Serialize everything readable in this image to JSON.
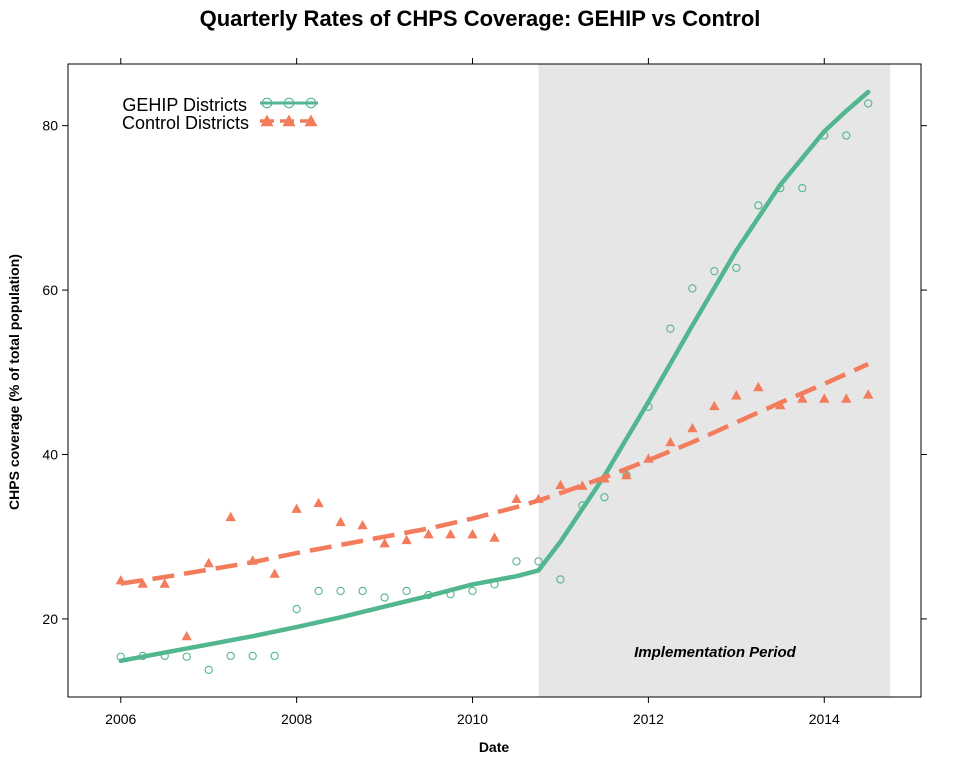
{
  "chart_data": {
    "type": "line",
    "title": "Quarterly Rates of CHPS Coverage: GEHIP vs Control",
    "xlabel": "Date",
    "ylabel": "CHPS coverage (% of total population)",
    "xlim": [
      2005.4,
      2015.1
    ],
    "ylim": [
      10.5,
      87.5
    ],
    "x_ticks": [
      2006,
      2008,
      2010,
      2012,
      2014
    ],
    "y_ticks": [
      20,
      40,
      60,
      80
    ],
    "shaded_region": {
      "x_start": 2010.75,
      "x_end": 2014.75,
      "label": "Implementation Period",
      "color": "#e6e6e6"
    },
    "legend_position": "top-left",
    "grid": false,
    "series": [
      {
        "name": "GEHIP Districts",
        "color": "#52b68f",
        "marker": "open-circle",
        "line_style": "solid",
        "points": [
          [
            2006.0,
            15.4
          ],
          [
            2006.25,
            15.5
          ],
          [
            2006.5,
            15.5
          ],
          [
            2006.75,
            15.4
          ],
          [
            2007.0,
            13.8
          ],
          [
            2007.25,
            15.5
          ],
          [
            2007.5,
            15.5
          ],
          [
            2007.75,
            15.5
          ],
          [
            2008.0,
            21.2
          ],
          [
            2008.25,
            23.4
          ],
          [
            2008.5,
            23.4
          ],
          [
            2008.75,
            23.4
          ],
          [
            2009.0,
            22.6
          ],
          [
            2009.25,
            23.4
          ],
          [
            2009.5,
            22.9
          ],
          [
            2009.75,
            23.0
          ],
          [
            2010.0,
            23.4
          ],
          [
            2010.25,
            24.2
          ],
          [
            2010.5,
            27.0
          ],
          [
            2010.75,
            27.0
          ],
          [
            2011.0,
            24.8
          ],
          [
            2011.25,
            33.8
          ],
          [
            2011.5,
            34.8
          ],
          [
            2011.75,
            37.5
          ],
          [
            2012.0,
            45.8
          ],
          [
            2012.25,
            55.3
          ],
          [
            2012.5,
            60.2
          ],
          [
            2012.75,
            62.3
          ],
          [
            2013.0,
            62.7
          ],
          [
            2013.25,
            70.3
          ],
          [
            2013.5,
            72.4
          ],
          [
            2013.75,
            72.4
          ],
          [
            2014.0,
            78.8
          ],
          [
            2014.25,
            78.8
          ],
          [
            2014.5,
            82.7
          ]
        ],
        "fit": [
          [
            2006.0,
            14.9
          ],
          [
            2006.5,
            15.9
          ],
          [
            2007.0,
            16.9
          ],
          [
            2007.5,
            17.9
          ],
          [
            2008.0,
            19.0
          ],
          [
            2008.5,
            20.2
          ],
          [
            2009.0,
            21.5
          ],
          [
            2009.5,
            22.8
          ],
          [
            2010.0,
            24.2
          ],
          [
            2010.5,
            25.2
          ],
          [
            2010.75,
            25.9
          ],
          [
            2011.0,
            29.4
          ],
          [
            2011.5,
            37.4
          ],
          [
            2012.0,
            46.4
          ],
          [
            2012.5,
            55.7
          ],
          [
            2013.0,
            64.8
          ],
          [
            2013.5,
            72.8
          ],
          [
            2014.0,
            79.3
          ],
          [
            2014.25,
            81.8
          ],
          [
            2014.5,
            84.1
          ]
        ]
      },
      {
        "name": "Control Districts",
        "color": "#f27c5b",
        "marker": "filled-triangle",
        "line_style": "dashed",
        "points": [
          [
            2006.0,
            24.7
          ],
          [
            2006.25,
            24.3
          ],
          [
            2006.5,
            24.3
          ],
          [
            2006.75,
            17.9
          ],
          [
            2007.0,
            26.8
          ],
          [
            2007.25,
            32.4
          ],
          [
            2007.5,
            27.1
          ],
          [
            2007.75,
            25.5
          ],
          [
            2008.0,
            33.4
          ],
          [
            2008.25,
            34.1
          ],
          [
            2008.5,
            31.8
          ],
          [
            2008.75,
            31.4
          ],
          [
            2009.0,
            29.2
          ],
          [
            2009.25,
            29.6
          ],
          [
            2009.5,
            30.3
          ],
          [
            2009.75,
            30.3
          ],
          [
            2010.0,
            30.3
          ],
          [
            2010.25,
            29.9
          ],
          [
            2010.5,
            34.6
          ],
          [
            2010.75,
            34.6
          ],
          [
            2011.0,
            36.3
          ],
          [
            2011.25,
            36.2
          ],
          [
            2011.5,
            37.1
          ],
          [
            2011.75,
            37.5
          ],
          [
            2012.0,
            39.5
          ],
          [
            2012.25,
            41.5
          ],
          [
            2012.5,
            43.2
          ],
          [
            2012.75,
            45.9
          ],
          [
            2013.0,
            47.2
          ],
          [
            2013.25,
            48.2
          ],
          [
            2013.5,
            46.0
          ],
          [
            2013.75,
            46.8
          ],
          [
            2014.0,
            46.8
          ],
          [
            2014.25,
            46.8
          ],
          [
            2014.5,
            47.3
          ]
        ],
        "fit": [
          [
            2006.0,
            24.3
          ],
          [
            2006.5,
            25.1
          ],
          [
            2007.0,
            26.0
          ],
          [
            2007.5,
            26.9
          ],
          [
            2008.0,
            28.0
          ],
          [
            2008.5,
            29.0
          ],
          [
            2009.0,
            30.0
          ],
          [
            2009.5,
            31.0
          ],
          [
            2010.0,
            32.2
          ],
          [
            2010.5,
            33.6
          ],
          [
            2010.75,
            34.4
          ],
          [
            2011.0,
            35.3
          ],
          [
            2011.5,
            37.2
          ],
          [
            2012.0,
            39.3
          ],
          [
            2012.5,
            41.5
          ],
          [
            2013.0,
            43.9
          ],
          [
            2013.5,
            46.3
          ],
          [
            2014.0,
            48.6
          ],
          [
            2014.5,
            51.0
          ]
        ]
      }
    ]
  }
}
